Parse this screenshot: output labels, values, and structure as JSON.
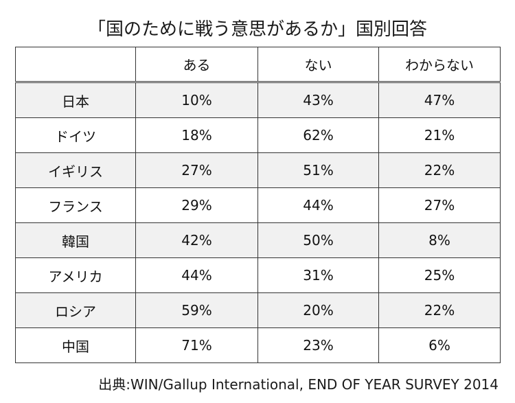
{
  "title": "「国のために戦う意思があるか」国別回答",
  "table": {
    "headers": [
      "",
      "ある",
      "ない",
      "わからない"
    ],
    "rows": [
      [
        "日本",
        "10%",
        "43%",
        "47%"
      ],
      [
        "ドイツ",
        "18%",
        "62%",
        "21%"
      ],
      [
        "イギリス",
        "27%",
        "51%",
        "22%"
      ],
      [
        "フランス",
        "29%",
        "44%",
        "27%"
      ],
      [
        "韓国",
        "42%",
        "50%",
        "8%"
      ],
      [
        "アメリカ",
        "44%",
        "31%",
        "25%"
      ],
      [
        "ロシア",
        "59%",
        "20%",
        "22%"
      ],
      [
        "中国",
        "71%",
        "23%",
        "6%"
      ]
    ]
  },
  "source": "出典:WIN/Gallup International, END OF YEAR SURVEY 2014"
}
